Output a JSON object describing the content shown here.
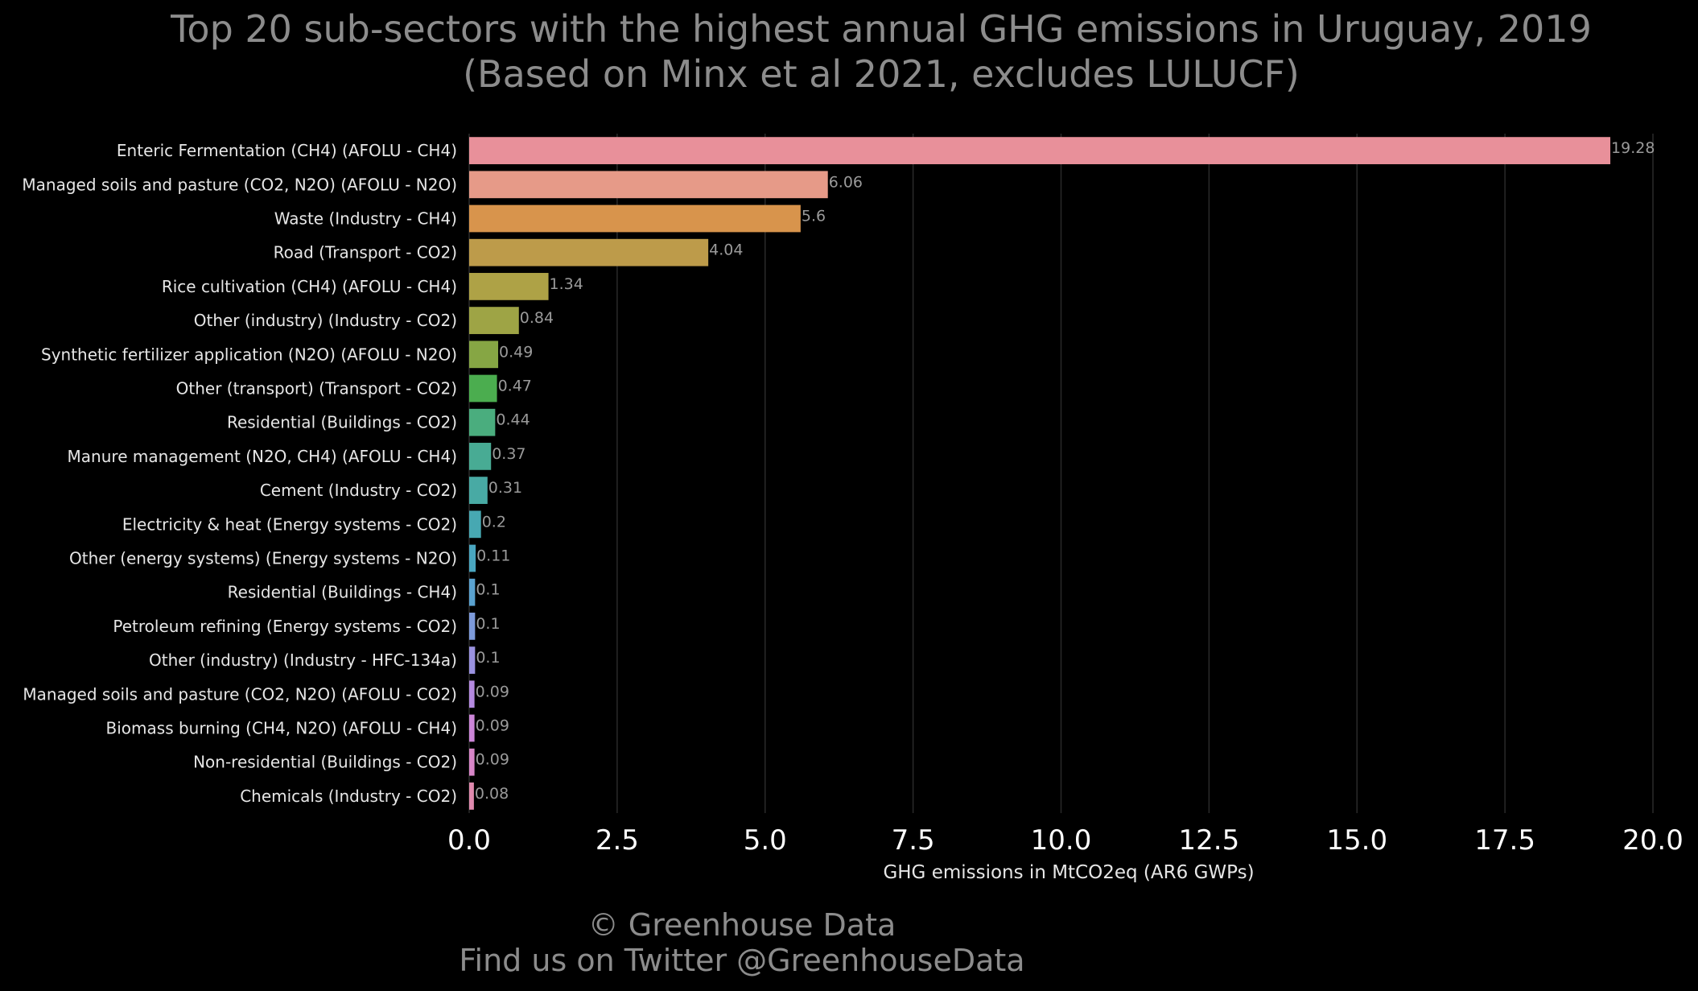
{
  "chart_data": {
    "type": "bar",
    "orientation": "horizontal",
    "title": "Top 20 sub-sectors with the highest annual GHG emissions in Uruguay, 2019",
    "subtitle": "(Based on Minx et al 2021, excludes LULUCF)",
    "xlabel": "GHG emissions in MtCO2eq (AR6 GWPs)",
    "ylabel": "",
    "xlim": [
      0,
      20
    ],
    "x_ticks": [
      "0.0",
      "2.5",
      "5.0",
      "7.5",
      "10.0",
      "12.5",
      "15.0",
      "17.5",
      "20.0"
    ],
    "grid": "vertical",
    "categories": [
      "Enteric Fermentation (CH4) (AFOLU - CH4)",
      "Managed soils and pasture (CO2, N2O) (AFOLU - N2O)",
      "Waste (Industry - CH4)",
      "Road (Transport - CO2)",
      "Rice cultivation (CH4) (AFOLU - CH4)",
      "Other (industry) (Industry - CO2)",
      "Synthetic fertilizer application (N2O) (AFOLU - N2O)",
      "Other (transport) (Transport - CO2)",
      "Residential (Buildings - CO2)",
      "Manure management (N2O, CH4) (AFOLU - CH4)",
      "Cement (Industry - CO2)",
      "Electricity & heat (Energy systems - CO2)",
      "Other (energy systems) (Energy systems - N2O)",
      "Residential (Buildings - CH4)",
      "Petroleum refining (Energy systems - CO2)",
      "Other (industry) (Industry - HFC-134a)",
      "Managed soils and pasture (CO2, N2O) (AFOLU - CO2)",
      "Biomass burning (CH4, N2O) (AFOLU - CH4)",
      "Non-residential (Buildings - CO2)",
      "Chemicals (Industry - CO2)"
    ],
    "values": [
      19.28,
      6.06,
      5.6,
      4.04,
      1.34,
      0.84,
      0.49,
      0.47,
      0.44,
      0.37,
      0.31,
      0.2,
      0.11,
      0.1,
      0.1,
      0.1,
      0.09,
      0.09,
      0.09,
      0.08
    ],
    "value_labels": [
      "19.28",
      "6.06",
      "5.6",
      "4.04",
      "1.34",
      "0.84",
      "0.49",
      "0.47",
      "0.44",
      "0.37",
      "0.31",
      "0.2",
      "0.11",
      "0.1",
      "0.1",
      "0.1",
      "0.09",
      "0.09",
      "0.09",
      "0.08"
    ],
    "colors": [
      "#e8909a",
      "#e69a88",
      "#d8944c",
      "#bd9b4a",
      "#aea246",
      "#9ea445",
      "#86a644",
      "#4bad4f",
      "#4aad7e",
      "#48ab94",
      "#48aaa4",
      "#47a8b2",
      "#4aa6c0",
      "#5aa2d0",
      "#7d9ada",
      "#9a92e0",
      "#b58ae0",
      "#cc86d8",
      "#d886c8",
      "#e08aae"
    ]
  },
  "footer": {
    "copyright": "© Greenhouse Data",
    "twitter": "Find us on Twitter @GreenhouseData"
  }
}
